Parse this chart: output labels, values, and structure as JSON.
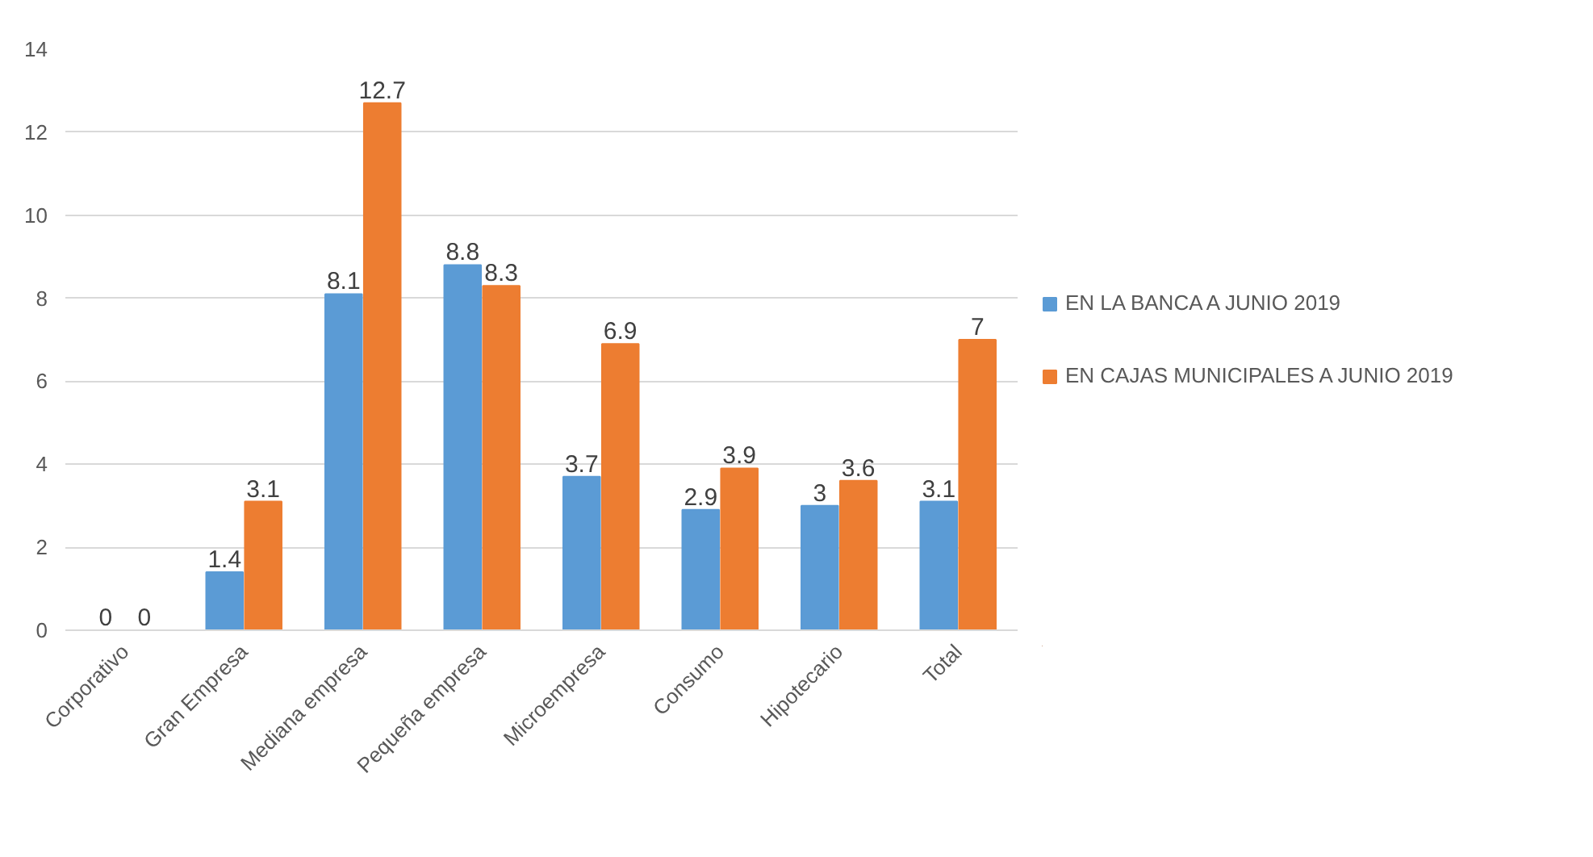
{
  "chart_data": {
    "type": "bar",
    "categories": [
      "Corporativo",
      "Gran Empresa",
      "Mediana empresa",
      "Pequeña empresa",
      "Microempresa",
      "Consumo",
      "Hipotecario",
      "Total"
    ],
    "series": [
      {
        "name": "EN LA BANCA A JUNIO 2019",
        "color": "#5b9bd5",
        "values": [
          0,
          1.4,
          8.1,
          8.8,
          3.7,
          2.9,
          3,
          3.1
        ]
      },
      {
        "name": "EN CAJAS MUNICIPALES A JUNIO 2019",
        "color": "#ed7d31",
        "values": [
          0,
          3.1,
          12.7,
          8.3,
          6.9,
          3.9,
          3.6,
          7
        ]
      }
    ],
    "ylim": [
      0,
      14
    ],
    "yticks": [
      0,
      2,
      4,
      6,
      8,
      10,
      12,
      14
    ],
    "grid": "y",
    "legend": "right",
    "data_labels": true
  }
}
